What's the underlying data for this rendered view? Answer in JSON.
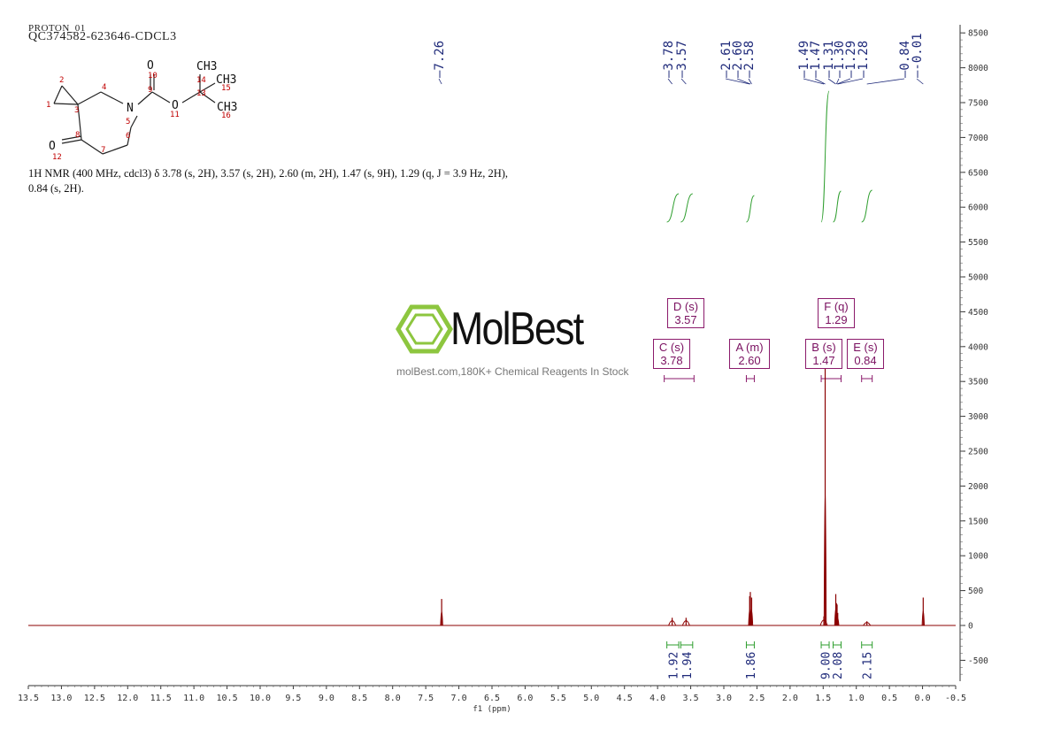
{
  "header": {
    "line1": "PROTON_01",
    "line2": "QC374582-623646-CDCL3"
  },
  "description": "1H NMR (400 MHz, cdcl3) δ 3.78 (s, 2H), 3.57 (s, 2H), 2.60 (m, 2H), 1.47 (s, 9H), 1.29 (q, J = 3.9 Hz, 2H), 0.84 (s, 2H).",
  "watermark": {
    "brand": "MolBest",
    "tagline": "molBest.com,180K+ Chemical Reagents In Stock",
    "color": "#8dc63f"
  },
  "structure": {
    "atom_numbers": [
      "1",
      "2",
      "3",
      "4",
      "5",
      "6",
      "7",
      "8",
      "9",
      "10",
      "11",
      "12",
      "13",
      "14",
      "15",
      "16"
    ],
    "atoms": [
      "N",
      "O",
      "O",
      "O",
      "CH3",
      "CH3",
      "CH3"
    ]
  },
  "multiplets": [
    {
      "letter": "D",
      "mult": "s",
      "shift": "3.57"
    },
    {
      "letter": "F",
      "mult": "q",
      "shift": "1.29"
    },
    {
      "letter": "C",
      "mult": "s",
      "shift": "3.78"
    },
    {
      "letter": "A",
      "mult": "m",
      "shift": "2.60"
    },
    {
      "letter": "B",
      "mult": "s",
      "shift": "1.47"
    },
    {
      "letter": "E",
      "mult": "s",
      "shift": "0.84"
    }
  ],
  "chart_data": {
    "type": "line",
    "xlabel": "f1 (ppm)",
    "xlim": [
      13.5,
      -0.5
    ],
    "ylim": [
      -800,
      8600
    ],
    "x_ticks": [
      "13.5",
      "13.0",
      "12.5",
      "12.0",
      "11.5",
      "11.0",
      "10.5",
      "10.0",
      "9.5",
      "9.0",
      "8.5",
      "8.0",
      "7.5",
      "7.0",
      "6.5",
      "6.0",
      "5.5",
      "5.0",
      "4.5",
      "4.0",
      "3.5",
      "3.0",
      "2.5",
      "2.0",
      "1.5",
      "1.0",
      "0.5",
      "0.0",
      "-0.5"
    ],
    "y_ticks": [
      "8500",
      "8000",
      "7500",
      "7000",
      "6500",
      "6000",
      "5500",
      "5000",
      "4500",
      "4000",
      "3500",
      "3000",
      "2500",
      "2000",
      "1500",
      "1000",
      "500",
      "0",
      "-500"
    ],
    "peak_labels": [
      "7.26",
      "3.78",
      "3.57",
      "2.61",
      "2.60",
      "2.58",
      "1.49",
      "1.47",
      "1.31",
      "1.30",
      "1.29",
      "1.28",
      "0.84",
      "-0.01"
    ],
    "peaks": [
      {
        "ppm": 7.26,
        "height": 380
      },
      {
        "ppm": 3.78,
        "height": 110
      },
      {
        "ppm": 3.57,
        "height": 110
      },
      {
        "ppm": 2.61,
        "height": 420
      },
      {
        "ppm": 2.6,
        "height": 480
      },
      {
        "ppm": 2.58,
        "height": 400
      },
      {
        "ppm": 1.49,
        "height": 130
      },
      {
        "ppm": 1.47,
        "height": 3900
      },
      {
        "ppm": 1.31,
        "height": 450
      },
      {
        "ppm": 1.3,
        "height": 320
      },
      {
        "ppm": 1.29,
        "height": 300
      },
      {
        "ppm": 1.28,
        "height": 180
      },
      {
        "ppm": 0.84,
        "height": 60
      },
      {
        "ppm": -0.01,
        "height": 400
      }
    ],
    "integrals": [
      {
        "value": "1.92",
        "from": 3.86,
        "to": 3.68
      },
      {
        "value": "1.94",
        "from": 3.65,
        "to": 3.47
      },
      {
        "value": "1.86",
        "from": 2.66,
        "to": 2.54
      },
      {
        "value": "9.00",
        "from": 1.53,
        "to": 1.41
      },
      {
        "value": "2.08",
        "from": 1.35,
        "to": 1.23
      },
      {
        "value": "2.15",
        "from": 0.92,
        "to": 0.76
      }
    ],
    "colors": {
      "spectrum": "#8b0000",
      "labels": "#1f2a7a",
      "integral": "#2e9e2e",
      "multiplet": "#8b1a6b"
    }
  }
}
